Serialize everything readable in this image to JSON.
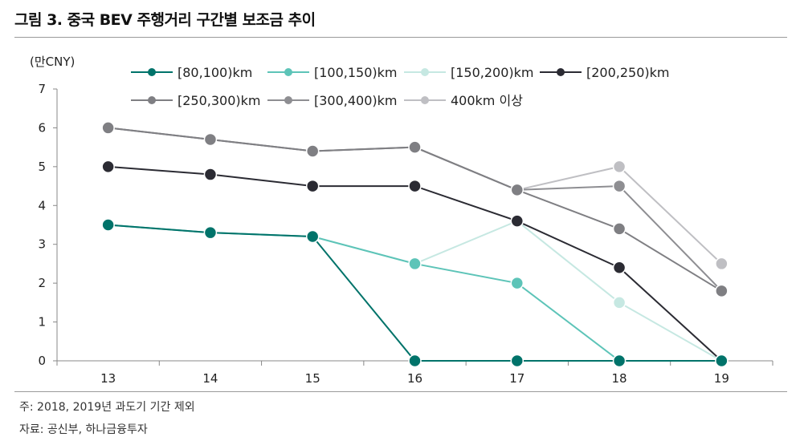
{
  "title": "그림 3. 중국 BEV 주행거리 구간별 보조금 추이",
  "note": "주: 2018, 2019년 과도기 기간 제외",
  "source": "자료: 공신부, 하나금융투자",
  "chart_data": {
    "type": "line",
    "ylabel": "(만CNY)",
    "xlabel": "",
    "categories": [
      "13",
      "14",
      "15",
      "16",
      "17",
      "18",
      "19"
    ],
    "ylim": [
      0,
      7
    ],
    "yticks": [
      "0",
      "1",
      "2",
      "3",
      "4",
      "5",
      "6",
      "7"
    ],
    "grid": false,
    "legend_position": "top",
    "series": [
      {
        "name": "[80,100)km",
        "color": "#00736a",
        "values": [
          3.5,
          3.3,
          3.2,
          0,
          0,
          0,
          0
        ]
      },
      {
        "name": "[100,150)km",
        "color": "#5dc4b8",
        "values": [
          3.5,
          3.3,
          3.2,
          2.5,
          2.0,
          0,
          0
        ]
      },
      {
        "name": "[150,200)km",
        "color": "#c6e8e2",
        "values": [
          3.5,
          3.3,
          3.2,
          2.5,
          3.6,
          1.5,
          0
        ]
      },
      {
        "name": "[200,250)km",
        "color": "#2b2b33",
        "values": [
          5.0,
          4.8,
          4.5,
          4.5,
          3.6,
          2.4,
          0
        ]
      },
      {
        "name": "[250,300)km",
        "color": "#7f7f83",
        "values": [
          6.0,
          5.7,
          5.4,
          5.5,
          4.4,
          3.4,
          1.8
        ]
      },
      {
        "name": "[300,400)km",
        "color": "#8e8e92",
        "values": [
          6.0,
          5.7,
          5.4,
          5.5,
          4.4,
          4.5,
          1.8
        ]
      },
      {
        "name": "400km 이상",
        "color": "#bfbfc3",
        "values": [
          6.0,
          5.7,
          5.4,
          5.5,
          4.4,
          5.0,
          2.5
        ]
      }
    ]
  }
}
